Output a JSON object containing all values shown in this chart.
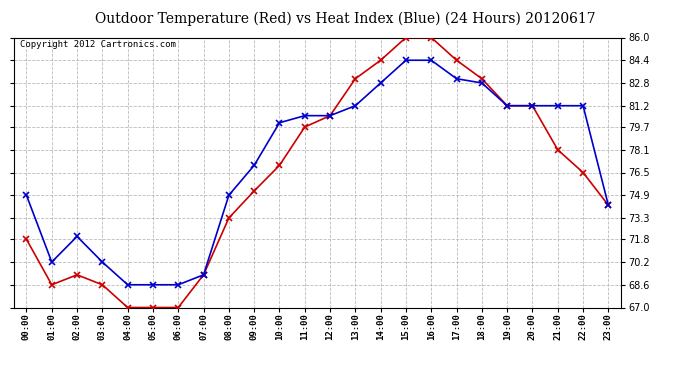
{
  "title": "Outdoor Temperature (Red) vs Heat Index (Blue) (24 Hours) 20120617",
  "copyright": "Copyright 2012 Cartronics.com",
  "hours": [
    "00:00",
    "01:00",
    "02:00",
    "03:00",
    "04:00",
    "05:00",
    "06:00",
    "07:00",
    "08:00",
    "09:00",
    "10:00",
    "11:00",
    "12:00",
    "13:00",
    "14:00",
    "15:00",
    "16:00",
    "17:00",
    "18:00",
    "19:00",
    "20:00",
    "21:00",
    "22:00",
    "23:00"
  ],
  "temp_red": [
    71.8,
    68.6,
    69.3,
    68.6,
    67.0,
    67.0,
    67.0,
    69.3,
    73.3,
    75.2,
    77.0,
    79.7,
    80.5,
    83.1,
    84.4,
    86.0,
    86.0,
    84.4,
    83.1,
    81.2,
    81.2,
    78.1,
    76.5,
    74.2
  ],
  "heat_blue": [
    74.9,
    70.2,
    72.0,
    70.2,
    68.6,
    68.6,
    68.6,
    69.3,
    74.9,
    77.0,
    80.0,
    80.5,
    80.5,
    81.2,
    82.8,
    84.4,
    84.4,
    83.1,
    82.8,
    81.2,
    81.2,
    81.2,
    81.2,
    74.2
  ],
  "ylim": [
    67.0,
    86.0
  ],
  "yticks": [
    67.0,
    68.6,
    70.2,
    71.8,
    73.3,
    74.9,
    76.5,
    78.1,
    79.7,
    81.2,
    82.8,
    84.4,
    86.0
  ],
  "red_color": "#cc0000",
  "blue_color": "#0000cc",
  "background_color": "#ffffff",
  "grid_color": "#aaaaaa",
  "title_fontsize": 10,
  "copyright_fontsize": 6.5,
  "fig_width": 6.9,
  "fig_height": 3.75,
  "dpi": 100
}
